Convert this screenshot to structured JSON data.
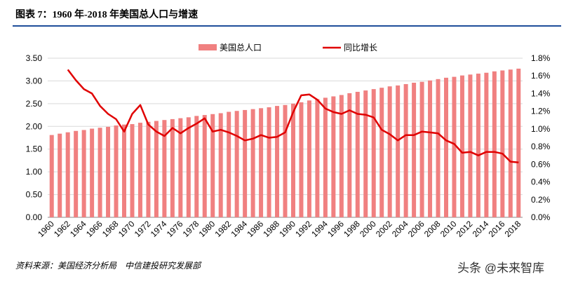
{
  "title": "图表 7：1960 年-2018 年美国总人口与增速",
  "source": "资料来源：美国经济分析局　中信建投研究发展部",
  "watermark": "头条 @未来智库",
  "chart_data": {
    "type": "bar-line",
    "categories": [
      "1960",
      null,
      "1962",
      null,
      "1964",
      null,
      "1966",
      null,
      "1968",
      null,
      "1970",
      null,
      "1972",
      null,
      "1974",
      null,
      "1976",
      null,
      "1978",
      null,
      "1980",
      null,
      "1982",
      null,
      "1984",
      null,
      "1986",
      null,
      "1988",
      null,
      "1990",
      null,
      "1992",
      null,
      "1994",
      null,
      "1996",
      null,
      "1998",
      null,
      "2000",
      null,
      "2002",
      null,
      "2004",
      null,
      "2006",
      null,
      "2008",
      null,
      "2010",
      null,
      "2012",
      null,
      "2014",
      null,
      "2016",
      null,
      "2018"
    ],
    "series": [
      {
        "name": "美国总人口",
        "color": "#f08080",
        "type": "bar",
        "values": [
          1.81,
          1.84,
          1.87,
          1.9,
          1.92,
          1.95,
          1.97,
          1.99,
          2.02,
          2.04,
          2.05,
          2.08,
          2.1,
          2.12,
          2.14,
          2.16,
          2.18,
          2.2,
          2.23,
          2.25,
          2.27,
          2.29,
          2.32,
          2.34,
          2.36,
          2.38,
          2.4,
          2.42,
          2.45,
          2.47,
          2.5,
          2.53,
          2.57,
          2.6,
          2.63,
          2.66,
          2.69,
          2.73,
          2.76,
          2.79,
          2.82,
          2.85,
          2.88,
          2.9,
          2.93,
          2.96,
          2.98,
          3.01,
          3.04,
          3.07,
          3.09,
          3.12,
          3.14,
          3.16,
          3.18,
          3.21,
          3.23,
          3.25,
          3.27
        ]
      },
      {
        "name": "同比增长",
        "color": "#e00000",
        "type": "line",
        "axis": "y2",
        "values": [
          null,
          null,
          1.67,
          1.55,
          1.45,
          1.4,
          1.26,
          1.17,
          1.11,
          0.97,
          1.17,
          1.27,
          1.05,
          0.97,
          0.92,
          1.01,
          0.95,
          1.01,
          1.06,
          1.12,
          0.97,
          0.99,
          0.96,
          0.92,
          0.87,
          0.89,
          0.93,
          0.9,
          0.91,
          0.96,
          1.19,
          1.38,
          1.39,
          1.33,
          1.23,
          1.19,
          1.17,
          1.21,
          1.17,
          1.16,
          1.13,
          0.99,
          0.94,
          0.87,
          0.93,
          0.93,
          0.97,
          0.96,
          0.95,
          0.87,
          0.83,
          0.73,
          0.74,
          0.7,
          0.74,
          0.74,
          0.72,
          0.63,
          0.62
        ]
      }
    ],
    "ylim": [
      0,
      3.5
    ],
    "yticks": [
      {
        "value": 0,
        "label": "0.00"
      },
      {
        "value": 0.5,
        "label": "0.50"
      },
      {
        "value": 1,
        "label": "1.00"
      },
      {
        "value": 1.5,
        "label": "1.50"
      },
      {
        "value": 2,
        "label": "2.00"
      },
      {
        "value": 2.5,
        "label": "2.50"
      },
      {
        "value": 3,
        "label": "3.00"
      },
      {
        "value": 3.5,
        "label": "3.50"
      }
    ],
    "y2lim": [
      0,
      1.8
    ],
    "y2ticks": [
      {
        "value": 0,
        "label": "0.0%"
      },
      {
        "value": 0.2,
        "label": "0.2%"
      },
      {
        "value": 0.4,
        "label": "0.4%"
      },
      {
        "value": 0.6,
        "label": "0.6%"
      },
      {
        "value": 0.8,
        "label": "0.8%"
      },
      {
        "value": 1.0,
        "label": "1.0%"
      },
      {
        "value": 1.2,
        "label": "1.2%"
      },
      {
        "value": 1.4,
        "label": "1.4%"
      },
      {
        "value": 1.6,
        "label": "1.6%"
      },
      {
        "value": 1.8,
        "label": "1.8%"
      }
    ],
    "grid": true
  }
}
